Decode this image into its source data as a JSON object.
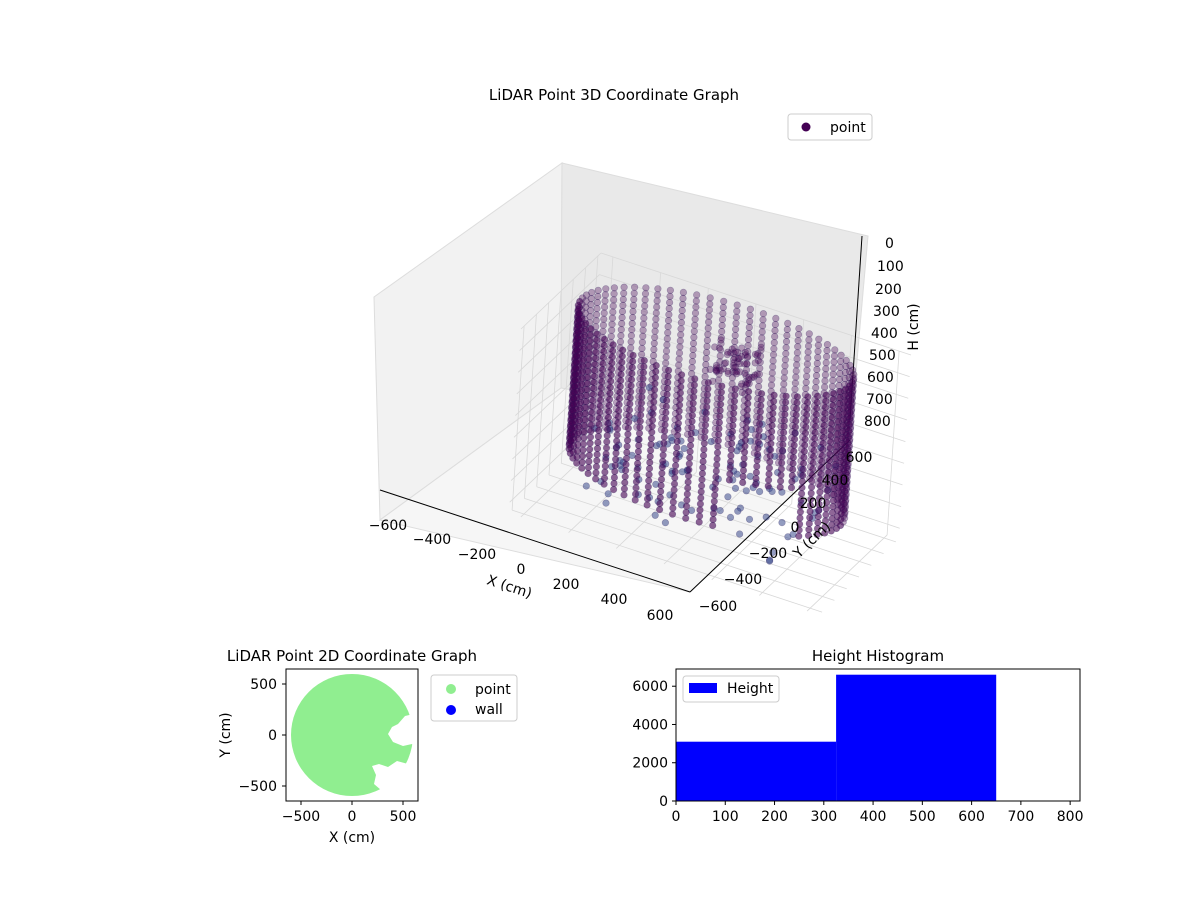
{
  "chart_data": [
    {
      "id": "plot3d",
      "type": "scatter",
      "title": "LiDAR Point 3D Coordinate Graph",
      "xlabel": "X (cm)",
      "ylabel": "Y (cm)",
      "zlabel": "H (cm)",
      "x_ticks": [
        "−600",
        "−400",
        "−200",
        "0",
        "200",
        "400",
        "600"
      ],
      "y_ticks": [
        "−600",
        "−400",
        "−200",
        "0",
        "200",
        "400",
        "600"
      ],
      "z_ticks": [
        "0",
        "100",
        "200",
        "300",
        "400",
        "500",
        "600",
        "700",
        "800"
      ],
      "xlim": [
        -650,
        650
      ],
      "ylim": [
        -650,
        650
      ],
      "zlim": [
        0,
        850
      ],
      "z_inverted": true,
      "grid": true,
      "legend": {
        "position": "top-right",
        "entries": [
          {
            "label": "point",
            "color": "#440154"
          }
        ]
      },
      "series": [
        {
          "name": "point",
          "color": "#440154",
          "shape": "cylindrical wall of points, radius ~560 cm, heights 0–650 cm, with a raised cluster near the rear and an opening toward the front",
          "radius": 560,
          "h_range": [
            0,
            650
          ]
        }
      ]
    },
    {
      "id": "plot2d",
      "type": "scatter",
      "title": "LiDAR Point 2D Coordinate Graph",
      "xlabel": "X (cm)",
      "ylabel": "Y (cm)",
      "x_ticks": [
        "−500",
        "0",
        "500"
      ],
      "y_ticks": [
        "500",
        "0",
        "−500"
      ],
      "xlim": [
        -650,
        650
      ],
      "ylim": [
        -650,
        650
      ],
      "legend": {
        "position": "outside right",
        "entries": [
          {
            "label": "point",
            "color": "#90ee90"
          },
          {
            "label": "wall",
            "color": "#0000ff"
          }
        ]
      },
      "series": [
        {
          "name": "point",
          "color": "#90ee90",
          "shape": "filled disc of radius ~600 cm centered at origin with cut-outs on the right side"
        },
        {
          "name": "wall",
          "color": "#0000ff",
          "values": []
        }
      ]
    },
    {
      "id": "hist",
      "type": "bar",
      "title": "Height Histogram",
      "x_ticks": [
        "0",
        "100",
        "200",
        "300",
        "400",
        "500",
        "600",
        "700",
        "800"
      ],
      "y_ticks": [
        "0",
        "2000",
        "4000",
        "6000"
      ],
      "xlim": [
        0,
        820
      ],
      "ylim": [
        0,
        6900
      ],
      "legend": {
        "position": "top-left",
        "entries": [
          {
            "label": "Height",
            "color": "#0000ff"
          }
        ]
      },
      "bins": [
        {
          "from": 0,
          "to": 325,
          "count": 3100
        },
        {
          "from": 325,
          "to": 650,
          "count": 6600
        }
      ]
    }
  ]
}
